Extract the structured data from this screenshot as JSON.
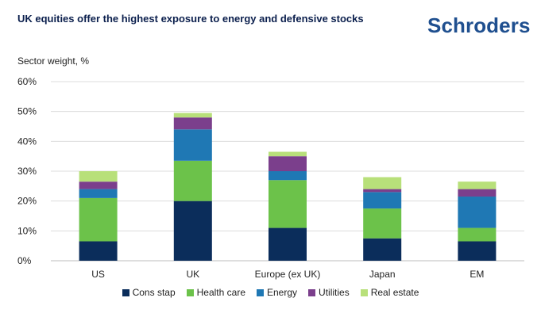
{
  "header": {
    "title": "UK equities offer the highest exposure to energy and defensive stocks",
    "logo_text": "Schroders"
  },
  "chart_data": {
    "type": "bar",
    "stacked": true,
    "title": "UK equities offer the highest exposure to energy and defensive stocks",
    "ylabel": "Sector weight, %",
    "xlabel": "",
    "ylim": [
      0,
      60
    ],
    "yticks": [
      0,
      10,
      20,
      30,
      40,
      50,
      60
    ],
    "ytick_labels": [
      "0%",
      "10%",
      "20%",
      "30%",
      "40%",
      "50%",
      "60%"
    ],
    "grid": true,
    "legend_position": "bottom",
    "categories": [
      "US",
      "UK",
      "Europe (ex UK)",
      "Japan",
      "EM"
    ],
    "series": [
      {
        "name": "Cons stap",
        "color": "#0b2d5b",
        "values": [
          6.5,
          20,
          11,
          7.5,
          6.5
        ]
      },
      {
        "name": "Health care",
        "color": "#6cc24a",
        "values": [
          14.5,
          13.5,
          16,
          10,
          4.5
        ]
      },
      {
        "name": "Energy",
        "color": "#1f78b4",
        "values": [
          3,
          10.5,
          3,
          5.5,
          10.5
        ]
      },
      {
        "name": "Utilities",
        "color": "#7b3f8c",
        "values": [
          2.5,
          4,
          5,
          1,
          2.5
        ]
      },
      {
        "name": "Real estate",
        "color": "#b8e07a",
        "values": [
          3.5,
          1.5,
          1.5,
          4,
          2.5
        ]
      }
    ]
  }
}
